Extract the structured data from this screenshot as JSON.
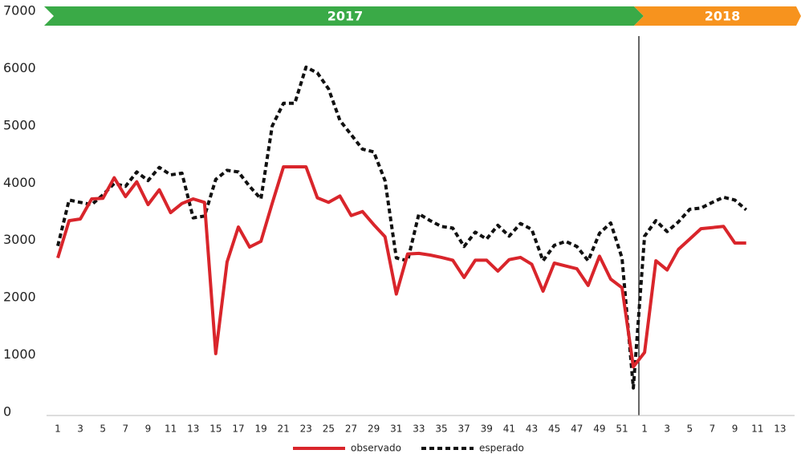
{
  "chart_data": {
    "type": "line",
    "annotations": [
      {
        "label": "2017",
        "color": "#3aaa47"
      },
      {
        "label": "2018",
        "color": "#f7931e"
      }
    ],
    "categories": [
      "1",
      null,
      "3",
      null,
      "5",
      null,
      "7",
      null,
      "9",
      null,
      "11",
      null,
      "13",
      null,
      "15",
      null,
      "17",
      null,
      "19",
      null,
      "21",
      null,
      "23",
      null,
      "25",
      null,
      "27",
      null,
      "29",
      null,
      "31",
      null,
      "33",
      null,
      "35",
      null,
      "37",
      null,
      "39",
      null,
      "41",
      null,
      "43",
      null,
      "45",
      null,
      "47",
      null,
      "49",
      null,
      "51",
      null,
      "1",
      null,
      "3",
      null,
      "5",
      null,
      "7",
      null,
      "9",
      null,
      "11",
      null,
      "13"
    ],
    "series": [
      {
        "name": "observado",
        "color": "#d9252b",
        "style": "solid",
        "values": [
          2750,
          3400,
          3430,
          3780,
          3790,
          4150,
          3820,
          4080,
          3680,
          3940,
          3540,
          3700,
          3780,
          3720,
          1080,
          2680,
          3290,
          2940,
          3040,
          3700,
          4340,
          4340,
          4340,
          3800,
          3720,
          3830,
          3490,
          3560,
          3330,
          3120,
          2120,
          2820,
          2830,
          2800,
          2760,
          2710,
          2410,
          2710,
          2710,
          2520,
          2720,
          2760,
          2640,
          2170,
          2660,
          2610,
          2560,
          2270,
          2780,
          2380,
          2230,
          850,
          1100,
          2700,
          2540,
          2900,
          3080,
          3260,
          3280,
          3300,
          3010,
          3010,
          null,
          null,
          null
        ]
      },
      {
        "name": "esperado",
        "color": "#111111",
        "style": "dashed",
        "values": [
          2960,
          3760,
          3720,
          3680,
          3850,
          4050,
          4000,
          4250,
          4100,
          4330,
          4200,
          4230,
          3450,
          3480,
          4120,
          4280,
          4250,
          4000,
          3780,
          5050,
          5450,
          5450,
          6080,
          5980,
          5700,
          5150,
          4900,
          4650,
          4600,
          4100,
          2750,
          2700,
          3520,
          3400,
          3300,
          3270,
          2950,
          3200,
          3080,
          3320,
          3130,
          3350,
          3250,
          2700,
          2970,
          3040,
          2950,
          2700,
          3180,
          3360,
          2750,
          480,
          3130,
          3400,
          3210,
          3380,
          3600,
          3620,
          3720,
          3810,
          3760,
          3590,
          null,
          null,
          null
        ]
      }
    ],
    "ylim": [
      0,
      7000
    ],
    "yticks": [
      0,
      1000,
      2000,
      3000,
      4000,
      5000,
      6000,
      7000
    ]
  }
}
